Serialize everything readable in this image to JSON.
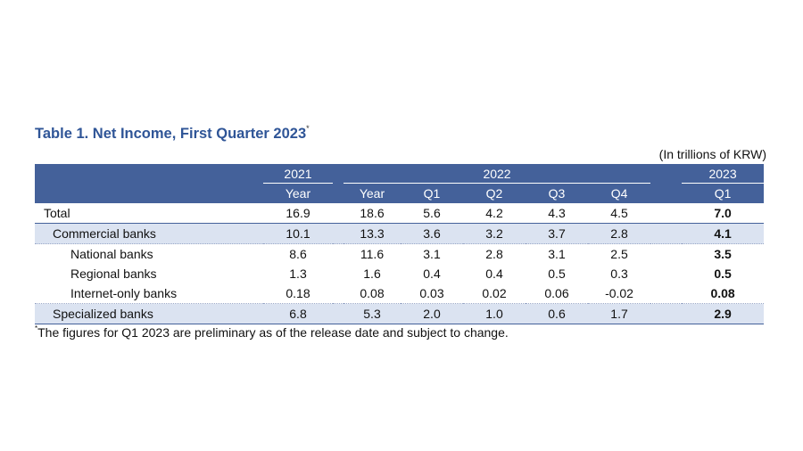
{
  "title": "Table 1. Net Income, First Quarter 2023",
  "title_mark": "*",
  "unit": "(In trillions of KRW)",
  "header": {
    "group_2021": "2021",
    "group_2022": "2022",
    "group_2023": "2023",
    "cols": [
      "Year",
      "Year",
      "Q1",
      "Q2",
      "Q3",
      "Q4",
      "Q1"
    ]
  },
  "rows": [
    {
      "label": "Total",
      "values": [
        "16.9",
        "18.6",
        "5.6",
        "4.2",
        "4.3",
        "4.5",
        "7.0"
      ]
    },
    {
      "label": "Commercial banks",
      "values": [
        "10.1",
        "13.3",
        "3.6",
        "3.2",
        "3.7",
        "2.8",
        "4.1"
      ]
    },
    {
      "label": "National banks",
      "values": [
        "8.6",
        "11.6",
        "3.1",
        "2.8",
        "3.1",
        "2.5",
        "3.5"
      ]
    },
    {
      "label": "Regional banks",
      "values": [
        "1.3",
        "1.6",
        "0.4",
        "0.4",
        "0.5",
        "0.3",
        "0.5"
      ]
    },
    {
      "label": "Internet-only banks",
      "values": [
        "0.18",
        "0.08",
        "0.03",
        "0.02",
        "0.06",
        "-0.02",
        "0.08"
      ]
    },
    {
      "label": "Specialized banks",
      "values": [
        "6.8",
        "5.3",
        "2.0",
        "1.0",
        "0.6",
        "1.7",
        "2.9"
      ]
    }
  ],
  "footnote_mark": "*",
  "footnote": "The figures for Q1 2023 are preliminary as of the release date and subject to change."
}
